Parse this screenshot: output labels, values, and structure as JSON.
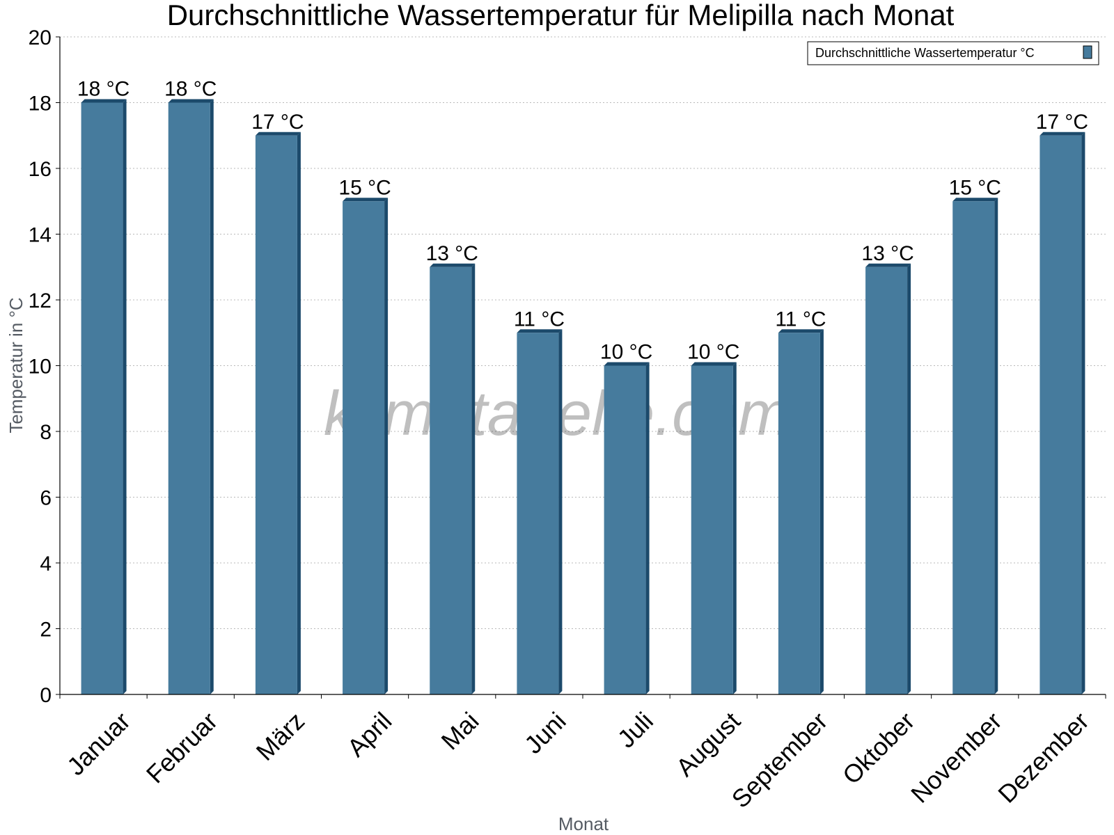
{
  "chart_data": {
    "type": "bar",
    "title": "Durchschnittliche Wassertemperatur für Melipilla nach Monat",
    "xlabel": "Monat",
    "ylabel": "Temperatur in °C",
    "categories": [
      "Januar",
      "Februar",
      "März",
      "April",
      "Mai",
      "Juni",
      "Juli",
      "August",
      "September",
      "Oktober",
      "November",
      "Dezember"
    ],
    "series": [
      {
        "name": "Durchschnittliche Wassertemperatur °C",
        "values": [
          18,
          18,
          17,
          15,
          13,
          11,
          10,
          10,
          11,
          13,
          15,
          17
        ],
        "labels": [
          "18 °C",
          "18 °C",
          "17 °C",
          "15 °C",
          "13 °C",
          "11 °C",
          "10 °C",
          "10 °C",
          "11 °C",
          "13 °C",
          "15 °C",
          "17 °C"
        ]
      }
    ],
    "ylim": [
      0,
      20
    ],
    "yticks": [
      0,
      2,
      4,
      6,
      8,
      10,
      12,
      14,
      16,
      18,
      20
    ],
    "grid": true,
    "legend_position": "top-right",
    "colors": {
      "bar": "#467b9d",
      "bar_dark": "#1c4a6b"
    },
    "watermark": "klimatabelle.com"
  }
}
